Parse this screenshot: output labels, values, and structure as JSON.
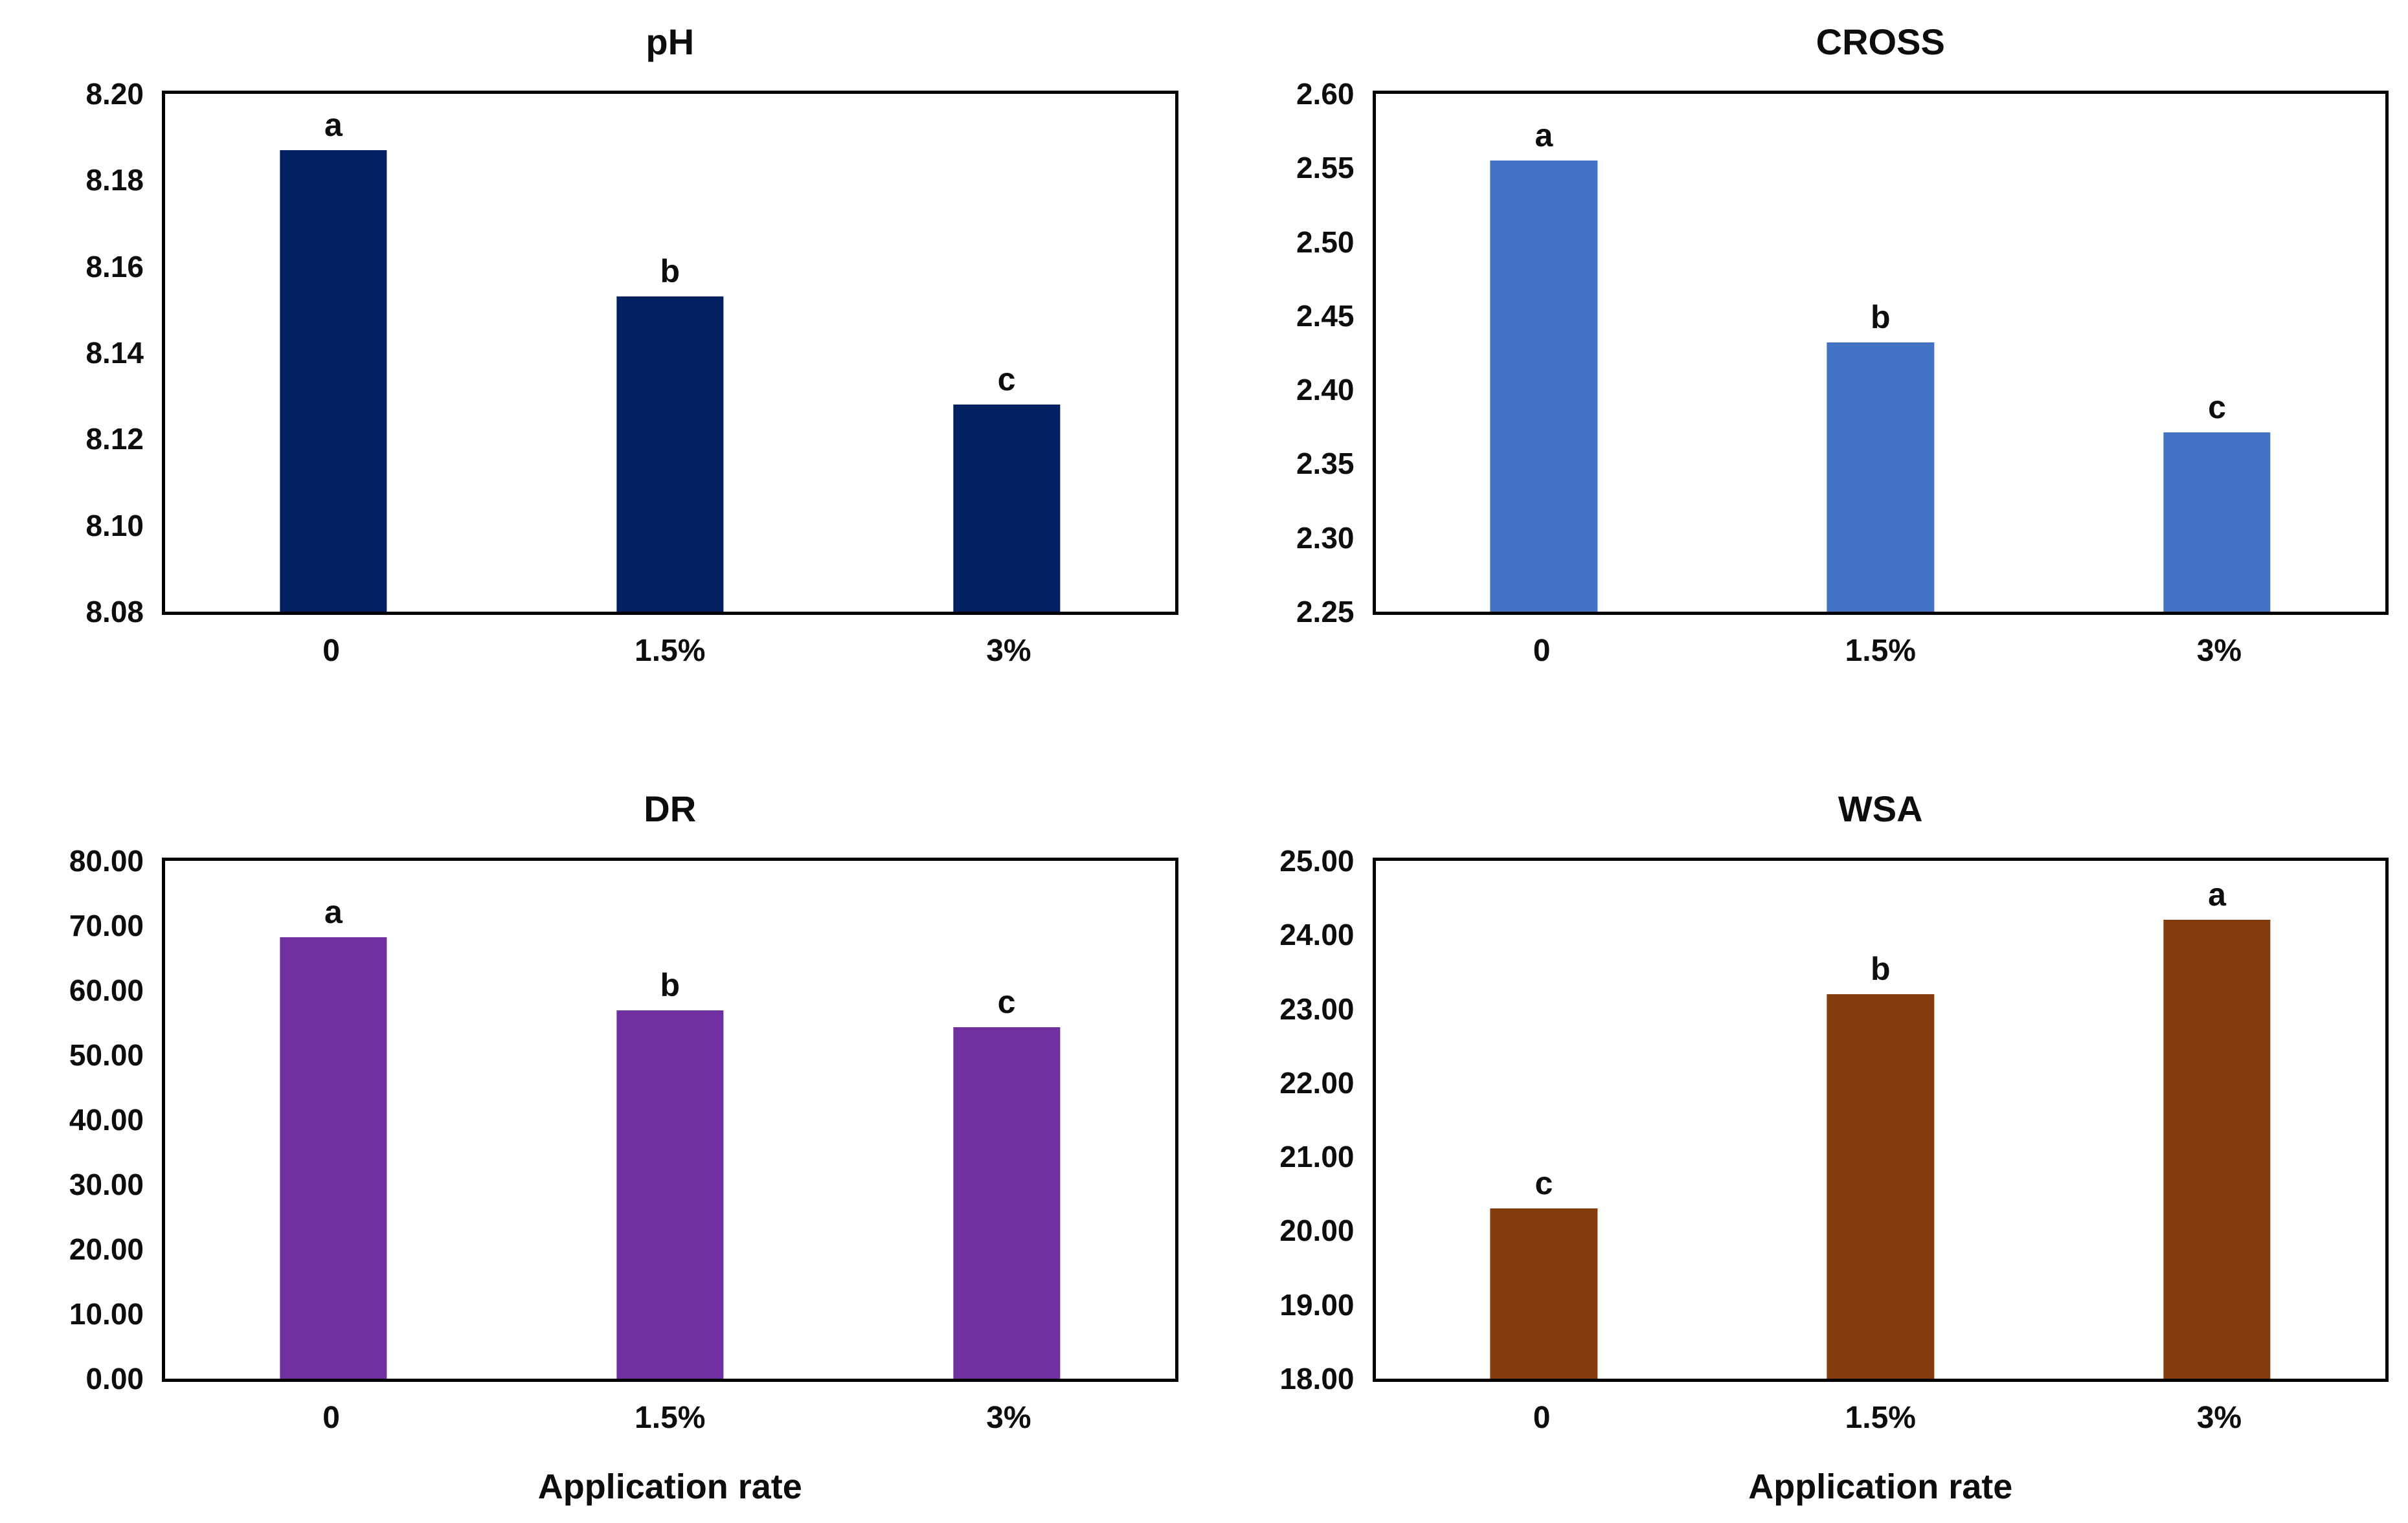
{
  "figure": {
    "background": "#ffffff",
    "layout": "2x2-grid",
    "x_axis_title": "Application rate"
  },
  "chart_data": [
    {
      "id": "ph",
      "type": "bar",
      "title": "pH",
      "categories": [
        "0",
        "1.5%",
        "3%"
      ],
      "values": [
        8.187,
        8.153,
        8.128
      ],
      "bar_letters": [
        "a",
        "b",
        "c"
      ],
      "bar_color": "#002060",
      "ylim": [
        8.08,
        8.2
      ],
      "ytick_step": 0.02,
      "ytick_labels": [
        "8.20",
        "8.18",
        "8.16",
        "8.14",
        "8.12",
        "8.10",
        "8.08"
      ],
      "xlabel": "",
      "grid": false,
      "legend": "none"
    },
    {
      "id": "cross",
      "type": "bar",
      "title": "CROSS",
      "categories": [
        "0",
        "1.5%",
        "3%"
      ],
      "values": [
        2.555,
        2.432,
        2.371
      ],
      "bar_letters": [
        "a",
        "b",
        "c"
      ],
      "bar_color": "#4472C4",
      "ylim": [
        2.25,
        2.6
      ],
      "ytick_step": 0.05,
      "ytick_labels": [
        "2.60",
        "2.55",
        "2.50",
        "2.45",
        "2.40",
        "2.35",
        "2.30",
        "2.25"
      ],
      "xlabel": "",
      "grid": false,
      "legend": "none"
    },
    {
      "id": "dr",
      "type": "bar",
      "title": "DR",
      "categories": [
        "0",
        "1.5%",
        "3%"
      ],
      "values": [
        68.2,
        56.9,
        54.3
      ],
      "bar_letters": [
        "a",
        "b",
        "c"
      ],
      "bar_color": "#7030A0",
      "ylim": [
        0.0,
        80.0
      ],
      "ytick_step": 10.0,
      "ytick_labels": [
        "80.00",
        "70.00",
        "60.00",
        "50.00",
        "40.00",
        "30.00",
        "20.00",
        "10.00",
        "0.00"
      ],
      "xlabel": "Application rate",
      "grid": false,
      "legend": "none"
    },
    {
      "id": "wsa",
      "type": "bar",
      "title": "WSA",
      "categories": [
        "0",
        "1.5%",
        "3%"
      ],
      "values": [
        20.3,
        23.2,
        24.2
      ],
      "bar_letters": [
        "c",
        "b",
        "a"
      ],
      "bar_color": "#843C0C",
      "ylim": [
        18.0,
        25.0
      ],
      "ytick_step": 1.0,
      "ytick_labels": [
        "25.00",
        "24.00",
        "23.00",
        "22.00",
        "21.00",
        "20.00",
        "19.00",
        "18.00"
      ],
      "xlabel": "Application rate",
      "grid": false,
      "legend": "none"
    }
  ]
}
